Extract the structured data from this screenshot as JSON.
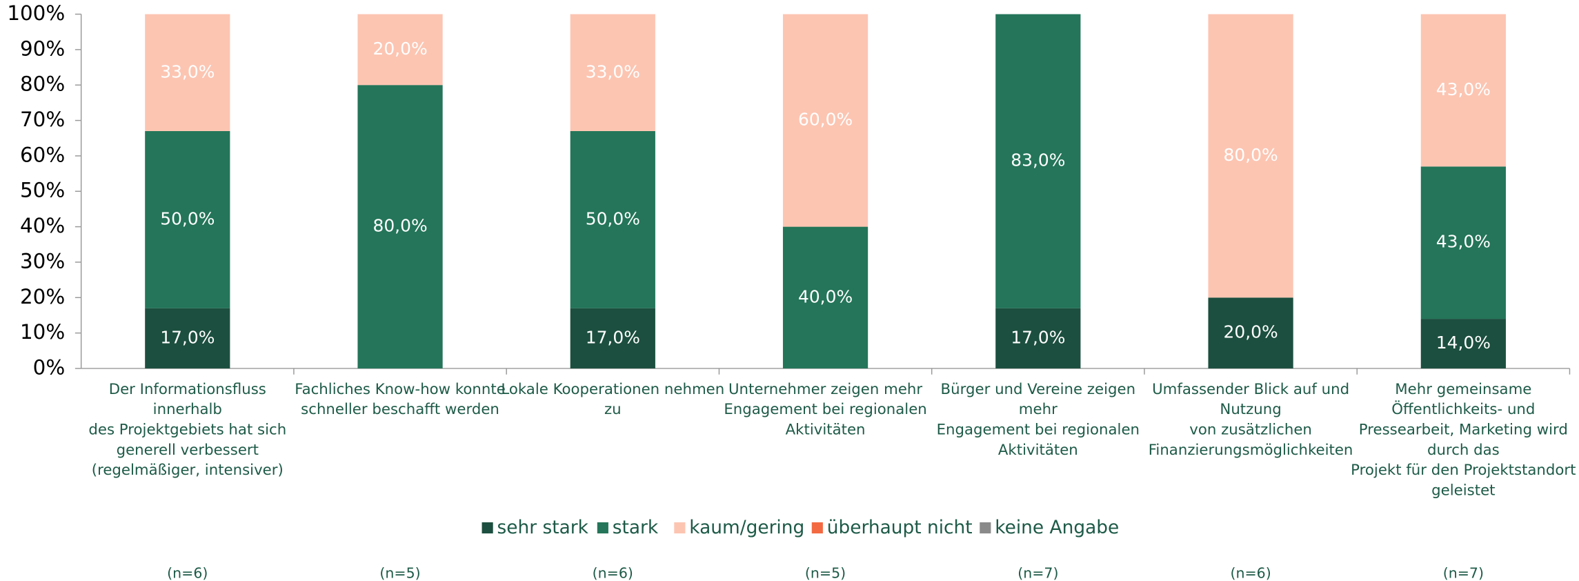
{
  "chart_data": {
    "type": "stacked_bar",
    "categories": [
      [
        "Der Informationsfluss",
        "innerhalb",
        "des Projektgebiets hat sich",
        "generell verbessert",
        "(regelmäßiger, intensiver)"
      ],
      [
        "Fachliches Know-how konnte",
        "schneller beschafft werden"
      ],
      [
        "Lokale Kooperationen nehmen",
        "zu"
      ],
      [
        "Unternehmer zeigen mehr",
        "Engagement bei regionalen",
        "Aktivitäten"
      ],
      [
        "Bürger und Vereine zeigen",
        "mehr",
        "Engagement bei regionalen",
        "Aktivitäten"
      ],
      [
        "Umfassender Blick auf und",
        "Nutzung",
        "von zusätzlichen",
        "Finanzierungsmöglichkeiten"
      ],
      [
        "Mehr gemeinsame",
        "Öffentlichkeits- und",
        "Pressearbeit, Marketing wird",
        "durch das",
        "Projekt für den Projektstandort",
        "geleistet"
      ]
    ],
    "sample_sizes": [
      "(n=6)",
      "(n=5)",
      "(n=6)",
      "(n=5)",
      "(n=7)",
      "(n=6)",
      "(n=7)"
    ],
    "series": [
      {
        "name": "sehr stark",
        "color": "#1c4f3f",
        "values": [
          17,
          0,
          17,
          0,
          17,
          20,
          14
        ],
        "value_labels": [
          "17,0%",
          null,
          "17,0%",
          null,
          "17,0%",
          "20,0%",
          "14,0%"
        ]
      },
      {
        "name": "stark",
        "color": "#247559",
        "values": [
          50,
          80,
          50,
          40,
          83,
          0,
          43
        ],
        "value_labels": [
          "50,0%",
          "80,0%",
          "50,0%",
          "40,0%",
          "83,0%",
          null,
          "43,0%"
        ]
      },
      {
        "name": "kaum/gering",
        "color": "#fcc5b2",
        "values": [
          33,
          20,
          33,
          60,
          0,
          80,
          43
        ],
        "value_labels": [
          "33,0%",
          "20,0%",
          "33,0%",
          "60,0%",
          null,
          "80,0%",
          "43,0%"
        ]
      },
      {
        "name": "überhaupt nicht",
        "color": "#f36a42",
        "values": [
          0,
          0,
          0,
          0,
          0,
          0,
          0
        ]
      },
      {
        "name": "keine Angabe",
        "color": "#8a8a8a",
        "values": [
          0,
          0,
          0,
          0,
          0,
          0,
          0
        ]
      }
    ],
    "ylim": [
      0,
      100
    ],
    "yticks": [
      {
        "value": 0,
        "label": "0%"
      },
      {
        "value": 10,
        "label": "10%"
      },
      {
        "value": 20,
        "label": "20%"
      },
      {
        "value": 30,
        "label": "30%"
      },
      {
        "value": 40,
        "label": "40%"
      },
      {
        "value": 50,
        "label": "50%"
      },
      {
        "value": 60,
        "label": "60%"
      },
      {
        "value": 70,
        "label": "70%"
      },
      {
        "value": 80,
        "label": "80%"
      },
      {
        "value": 90,
        "label": "90%"
      },
      {
        "value": 100,
        "label": "100%"
      }
    ],
    "legend": "bottom"
  }
}
